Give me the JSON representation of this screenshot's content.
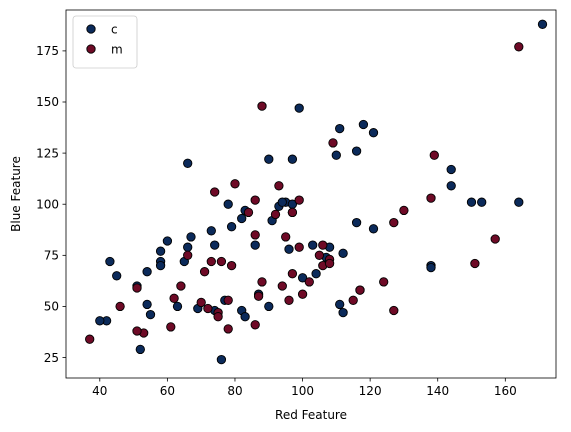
{
  "chart_data": {
    "type": "scatter",
    "xlabel": "Red Feature",
    "ylabel": "Blue Feature",
    "xlim": [
      30,
      175
    ],
    "ylim": [
      15,
      195
    ],
    "xticks": [
      40,
      60,
      80,
      100,
      120,
      140,
      160
    ],
    "yticks": [
      25,
      50,
      75,
      100,
      125,
      150,
      175
    ],
    "grid": false,
    "legend_position": "top-left",
    "series": [
      {
        "name": "c",
        "color": "#0b2a5a",
        "points": [
          [
            171,
            188
          ],
          [
            118,
            139
          ],
          [
            99,
            147
          ],
          [
            121,
            135
          ],
          [
            111,
            137
          ],
          [
            110,
            124
          ],
          [
            116,
            126
          ],
          [
            66,
            120
          ],
          [
            90,
            122
          ],
          [
            97,
            122
          ],
          [
            144,
            117
          ],
          [
            144,
            109
          ],
          [
            150,
            101
          ],
          [
            153,
            101
          ],
          [
            164,
            101
          ],
          [
            138,
            70
          ],
          [
            138,
            69
          ],
          [
            121,
            88
          ],
          [
            116,
            91
          ],
          [
            112,
            76
          ],
          [
            108,
            79
          ],
          [
            103,
            80
          ],
          [
            107,
            74
          ],
          [
            100,
            64
          ],
          [
            104,
            66
          ],
          [
            96,
            78
          ],
          [
            91,
            92
          ],
          [
            93,
            99
          ],
          [
            95,
            101
          ],
          [
            97,
            100
          ],
          [
            97,
            96
          ],
          [
            94,
            101
          ],
          [
            83,
            97
          ],
          [
            82,
            93
          ],
          [
            79,
            89
          ],
          [
            78,
            100
          ],
          [
            86,
            80
          ],
          [
            73,
            87
          ],
          [
            74,
            80
          ],
          [
            67,
            84
          ],
          [
            66,
            79
          ],
          [
            65,
            72
          ],
          [
            60,
            82
          ],
          [
            58,
            77
          ],
          [
            58,
            72
          ],
          [
            58,
            70
          ],
          [
            54,
            67
          ],
          [
            45,
            65
          ],
          [
            43,
            72
          ],
          [
            42,
            43
          ],
          [
            40,
            43
          ],
          [
            51,
            60
          ],
          [
            52,
            29
          ],
          [
            54,
            51
          ],
          [
            55,
            46
          ],
          [
            63,
            50
          ],
          [
            69,
            49
          ],
          [
            74,
            48
          ],
          [
            77,
            53
          ],
          [
            82,
            48
          ],
          [
            83,
            45
          ],
          [
            87,
            56
          ],
          [
            90,
            50
          ],
          [
            111,
            51
          ],
          [
            112,
            47
          ],
          [
            117,
            58
          ],
          [
            76,
            24
          ]
        ]
      },
      {
        "name": "m",
        "color": "#6e0a26",
        "points": [
          [
            164,
            177
          ],
          [
            88,
            148
          ],
          [
            109,
            130
          ],
          [
            139,
            124
          ],
          [
            138,
            103
          ],
          [
            130,
            97
          ],
          [
            127,
            91
          ],
          [
            157,
            83
          ],
          [
            151,
            71
          ],
          [
            124,
            62
          ],
          [
            127,
            48
          ],
          [
            115,
            53
          ],
          [
            117,
            58
          ],
          [
            108,
            73
          ],
          [
            106,
            80
          ],
          [
            106,
            70
          ],
          [
            102,
            62
          ],
          [
            97,
            66
          ],
          [
            99,
            79
          ],
          [
            99,
            102
          ],
          [
            97,
            96
          ],
          [
            95,
            84
          ],
          [
            93,
            109
          ],
          [
            92,
            95
          ],
          [
            86,
            102
          ],
          [
            86,
            85
          ],
          [
            80,
            110
          ],
          [
            84,
            96
          ],
          [
            74,
            106
          ],
          [
            79,
            70
          ],
          [
            76,
            72
          ],
          [
            71,
            67
          ],
          [
            73,
            72
          ],
          [
            66,
            75
          ],
          [
            64,
            60
          ],
          [
            62,
            54
          ],
          [
            61,
            40
          ],
          [
            53,
            37
          ],
          [
            51,
            38
          ],
          [
            51,
            59
          ],
          [
            46,
            50
          ],
          [
            37,
            34
          ],
          [
            70,
            52
          ],
          [
            72,
            49
          ],
          [
            75,
            47
          ],
          [
            75,
            45
          ],
          [
            78,
            39
          ],
          [
            78,
            53
          ],
          [
            86,
            41
          ],
          [
            87,
            55
          ],
          [
            88,
            62
          ],
          [
            94,
            60
          ],
          [
            96,
            53
          ],
          [
            100,
            56
          ],
          [
            105,
            75
          ],
          [
            108,
            71
          ]
        ]
      }
    ]
  }
}
